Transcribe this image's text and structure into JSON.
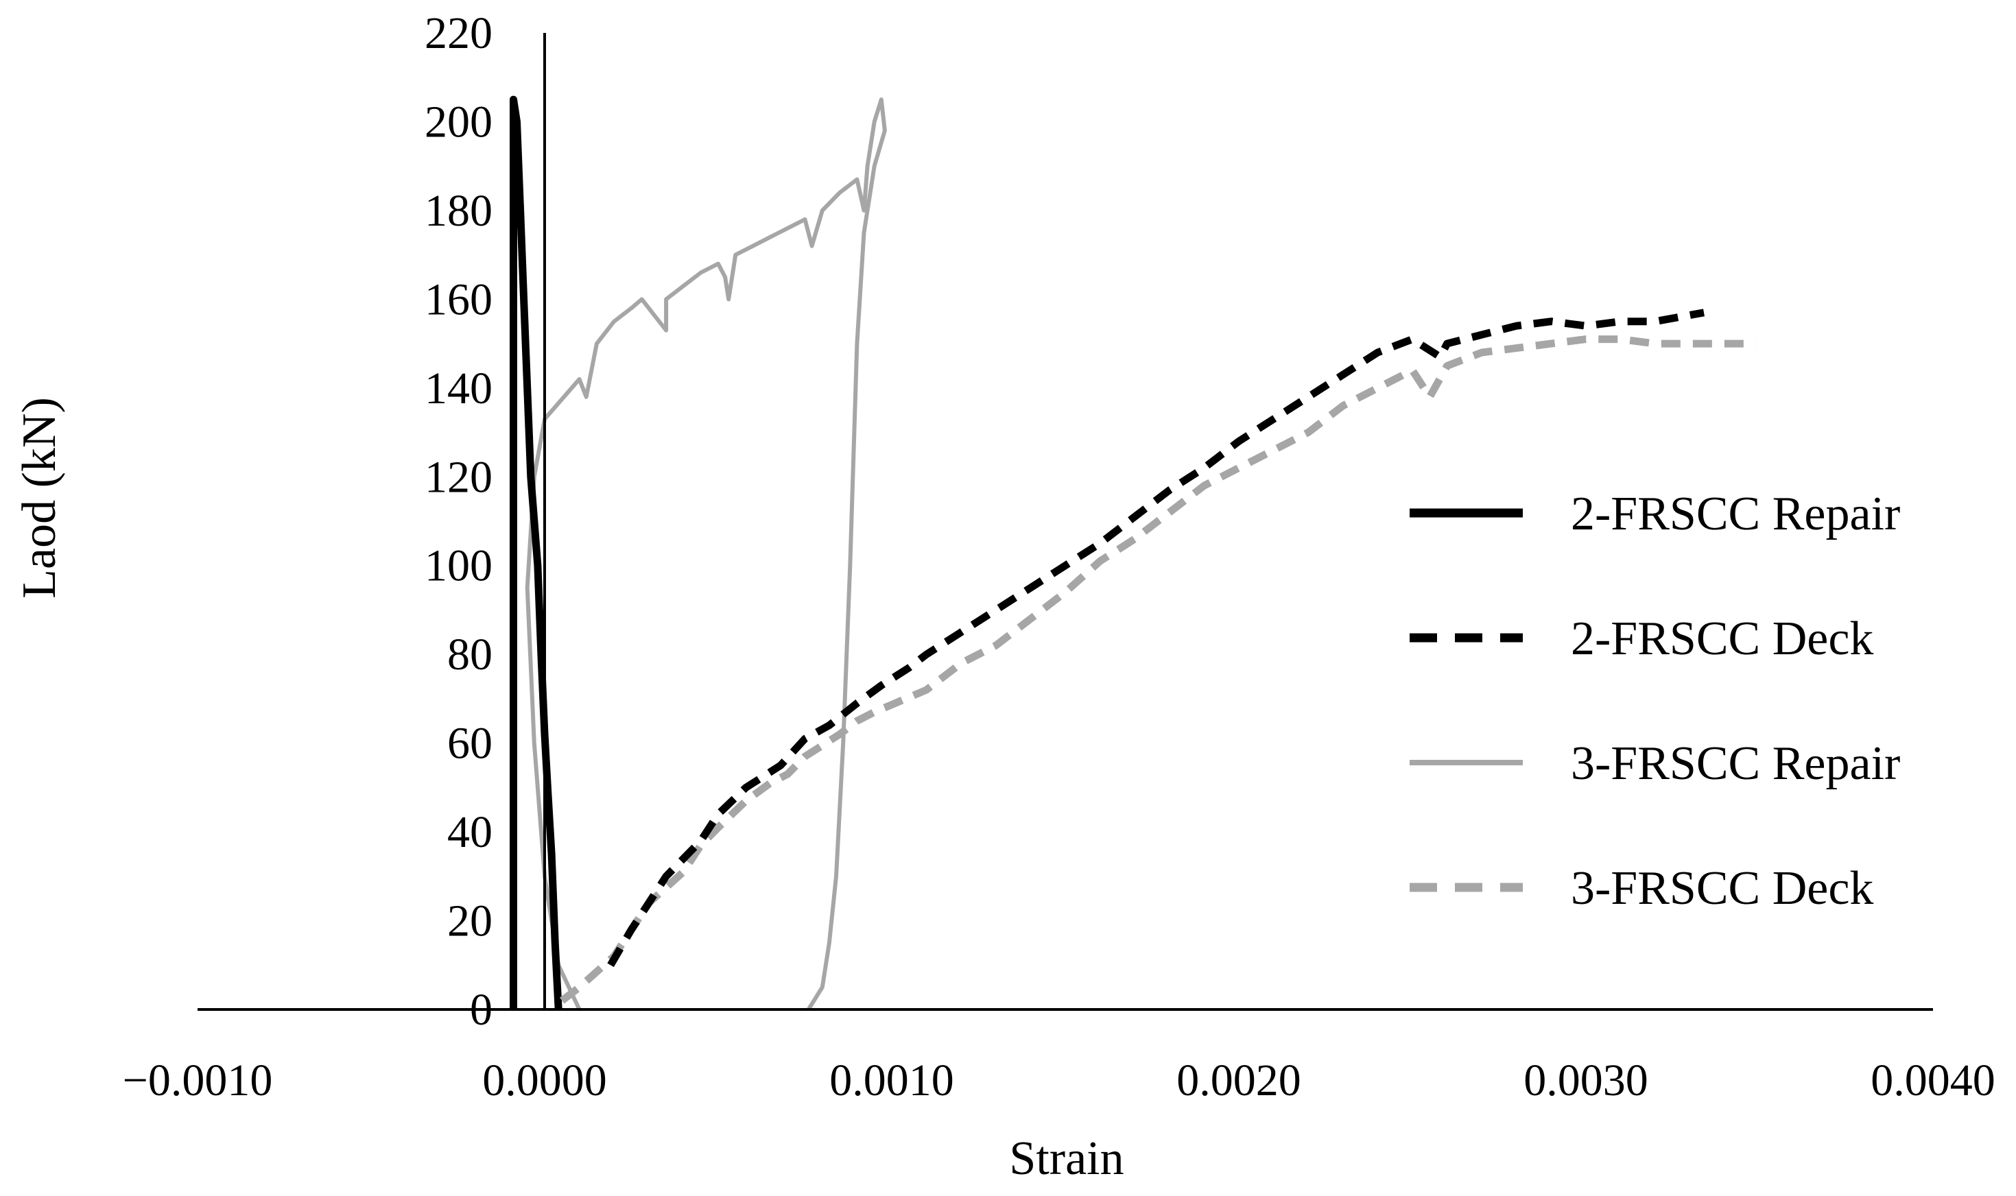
{
  "chart_data": {
    "type": "line",
    "xlabel": "Strain",
    "ylabel": "Laod (kN)",
    "xlim": [
      -0.001,
      0.004
    ],
    "ylim": [
      0,
      220
    ],
    "x_ticks": [
      "−0.0010",
      "0.0000",
      "0.0010",
      "0.0020",
      "0.0030",
      "0.0040"
    ],
    "x_tick_values": [
      -0.001,
      0.0,
      0.001,
      0.002,
      0.003,
      0.004
    ],
    "y_ticks": [
      "0",
      "20",
      "40",
      "60",
      "80",
      "100",
      "120",
      "140",
      "160",
      "180",
      "200",
      "220"
    ],
    "y_tick_values": [
      0,
      20,
      40,
      60,
      80,
      100,
      120,
      140,
      160,
      180,
      200,
      220
    ],
    "grid": false,
    "legend_position": "right",
    "series": [
      {
        "name": "2-FRSCC Repair",
        "color": "#000000",
        "style": "solid-thick",
        "points": [
          [
            -9e-05,
            0
          ],
          [
            -9e-05,
            30
          ],
          [
            -9e-05,
            60
          ],
          [
            -9e-05,
            100
          ],
          [
            -9e-05,
            140
          ],
          [
            -9e-05,
            180
          ],
          [
            -9e-05,
            205
          ],
          [
            -8e-05,
            200
          ],
          [
            -7e-05,
            180
          ],
          [
            -6e-05,
            160
          ],
          [
            -5e-05,
            140
          ],
          [
            -4e-05,
            120
          ],
          [
            -2e-05,
            100
          ],
          [
            -1e-05,
            80
          ],
          [
            0.0,
            62
          ],
          [
            1e-05,
            48
          ],
          [
            2e-05,
            35
          ],
          [
            3e-05,
            15
          ],
          [
            4e-05,
            0
          ]
        ]
      },
      {
        "name": "2-FRSCC Deck",
        "color": "#000000",
        "style": "dashed-thick",
        "points": [
          [
            0.00019,
            10
          ],
          [
            0.00025,
            18
          ],
          [
            0.0003,
            24
          ],
          [
            0.00035,
            30
          ],
          [
            0.00045,
            38
          ],
          [
            0.0005,
            44
          ],
          [
            0.00058,
            50
          ],
          [
            0.00068,
            55
          ],
          [
            0.00075,
            61
          ],
          [
            0.00082,
            64
          ],
          [
            0.0009,
            69
          ],
          [
            0.00097,
            73
          ],
          [
            0.00105,
            77
          ],
          [
            0.0011,
            80
          ],
          [
            0.0012,
            85
          ],
          [
            0.0013,
            90
          ],
          [
            0.0014,
            95
          ],
          [
            0.0015,
            100
          ],
          [
            0.0016,
            105
          ],
          [
            0.0017,
            111
          ],
          [
            0.0018,
            117
          ],
          [
            0.0019,
            122
          ],
          [
            0.002,
            128
          ],
          [
            0.0021,
            133
          ],
          [
            0.0022,
            138
          ],
          [
            0.0023,
            143
          ],
          [
            0.0024,
            148
          ],
          [
            0.0025,
            151
          ],
          [
            0.00258,
            147
          ],
          [
            0.0026,
            150
          ],
          [
            0.0027,
            152
          ],
          [
            0.0028,
            154
          ],
          [
            0.0029,
            155
          ],
          [
            0.003,
            154
          ],
          [
            0.0031,
            155
          ],
          [
            0.0032,
            155
          ],
          [
            0.00334,
            157
          ]
        ]
      },
      {
        "name": "3-FRSCC Repair",
        "color": "#a6a6a6",
        "style": "solid-thin",
        "points": [
          [
            0.0001,
            0
          ],
          [
            4e-05,
            10
          ],
          [
            0.0,
            30
          ],
          [
            -3e-05,
            60
          ],
          [
            -5e-05,
            95
          ],
          [
            -3e-05,
            120
          ],
          [
            0.0,
            133
          ],
          [
            0.0001,
            142
          ],
          [
            0.00012,
            138
          ],
          [
            0.00015,
            150
          ],
          [
            0.0002,
            155
          ],
          [
            0.00025,
            158
          ],
          [
            0.00028,
            160
          ],
          [
            0.00032,
            156
          ],
          [
            0.00035,
            153
          ],
          [
            0.00035,
            160
          ],
          [
            0.0004,
            163
          ],
          [
            0.00045,
            166
          ],
          [
            0.0005,
            168
          ],
          [
            0.00052,
            165
          ],
          [
            0.00053,
            160
          ],
          [
            0.00055,
            170
          ],
          [
            0.0006,
            172
          ],
          [
            0.00065,
            174
          ],
          [
            0.0007,
            176
          ],
          [
            0.00075,
            178
          ],
          [
            0.00077,
            172
          ],
          [
            0.0008,
            180
          ],
          [
            0.00085,
            184
          ],
          [
            0.0009,
            187
          ],
          [
            0.00092,
            180
          ],
          [
            0.00093,
            190
          ],
          [
            0.00095,
            200
          ],
          [
            0.00097,
            205
          ],
          [
            0.00098,
            198
          ],
          [
            0.00095,
            190
          ],
          [
            0.00092,
            175
          ],
          [
            0.0009,
            150
          ],
          [
            0.00088,
            100
          ],
          [
            0.00086,
            60
          ],
          [
            0.00084,
            30
          ],
          [
            0.00082,
            15
          ],
          [
            0.0008,
            5
          ],
          [
            0.00076,
            0
          ]
        ]
      },
      {
        "name": "3-FRSCC Deck",
        "color": "#a6a6a6",
        "style": "dashed-thick",
        "points": [
          [
            5e-05,
            2
          ],
          [
            0.0001,
            5
          ],
          [
            0.0002,
            12
          ],
          [
            0.00025,
            18
          ],
          [
            0.0003,
            24
          ],
          [
            0.0004,
            31
          ],
          [
            0.00045,
            37
          ],
          [
            0.0005,
            41
          ],
          [
            0.00058,
            47
          ],
          [
            0.00065,
            51
          ],
          [
            0.0007,
            53
          ],
          [
            0.00075,
            57
          ],
          [
            0.00085,
            62
          ],
          [
            0.0009,
            65
          ],
          [
            0.00095,
            67
          ],
          [
            0.0011,
            72
          ],
          [
            0.0012,
            78
          ],
          [
            0.0013,
            82
          ],
          [
            0.0014,
            88
          ],
          [
            0.0015,
            94
          ],
          [
            0.0016,
            101
          ],
          [
            0.0017,
            106
          ],
          [
            0.0018,
            112
          ],
          [
            0.0019,
            118
          ],
          [
            0.002,
            122
          ],
          [
            0.0021,
            126
          ],
          [
            0.0022,
            130
          ],
          [
            0.0023,
            136
          ],
          [
            0.0024,
            140
          ],
          [
            0.0025,
            144
          ],
          [
            0.00255,
            138
          ],
          [
            0.0026,
            145
          ],
          [
            0.0027,
            148
          ],
          [
            0.0028,
            149
          ],
          [
            0.0029,
            150
          ],
          [
            0.003,
            151
          ],
          [
            0.0031,
            151
          ],
          [
            0.0032,
            150
          ],
          [
            0.0033,
            150
          ],
          [
            0.00349,
            150
          ]
        ]
      }
    ]
  }
}
